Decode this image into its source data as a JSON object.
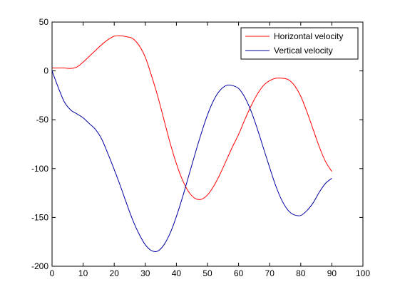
{
  "chart_data": {
    "type": "line",
    "title": "",
    "xlabel": "",
    "ylabel": "",
    "xlim": [
      0,
      100
    ],
    "ylim": [
      -200,
      50
    ],
    "xticks": [
      0,
      10,
      20,
      30,
      40,
      50,
      60,
      70,
      80,
      90,
      100
    ],
    "yticks": [
      -200,
      -150,
      -100,
      -50,
      0,
      50
    ],
    "grid": false,
    "legend_position": "top-right",
    "series": [
      {
        "name": "Horizontal velocity",
        "color": "#ff0000",
        "x": [
          0,
          2,
          4,
          6,
          8,
          10,
          12,
          14,
          16,
          18,
          20,
          22,
          24,
          26,
          28,
          30,
          32,
          34,
          36,
          38,
          40,
          42,
          44,
          46,
          48,
          50,
          52,
          54,
          56,
          58,
          60,
          62,
          64,
          66,
          68,
          70,
          72,
          74,
          76,
          78,
          80,
          82,
          84,
          86,
          88,
          90
        ],
        "y": [
          3,
          3,
          3,
          2.5,
          4,
          9,
          15,
          21,
          27,
          32,
          35.5,
          36,
          35,
          33,
          26,
          14,
          -5,
          -26,
          -50,
          -74,
          -95,
          -112,
          -124,
          -130.5,
          -131.5,
          -127,
          -118,
          -106,
          -92,
          -78,
          -65,
          -50,
          -36,
          -24,
          -15,
          -10,
          -7.5,
          -7.5,
          -9,
          -15,
          -26,
          -42,
          -60,
          -78,
          -93,
          -103
        ]
      },
      {
        "name": "Vertical velocity",
        "color": "#0000a0",
        "x": [
          0,
          2,
          4,
          6,
          8,
          10,
          12,
          14,
          16,
          18,
          20,
          22,
          24,
          26,
          28,
          30,
          32,
          34,
          36,
          38,
          40,
          42,
          44,
          46,
          48,
          50,
          52,
          54,
          56,
          58,
          60,
          62,
          64,
          66,
          68,
          70,
          72,
          74,
          76,
          78,
          80,
          82,
          84,
          86,
          88,
          90
        ],
        "y": [
          0,
          -17,
          -32,
          -40,
          -44,
          -48,
          -54,
          -60,
          -70,
          -85,
          -101,
          -118,
          -136,
          -153,
          -167,
          -178,
          -184,
          -184.5,
          -178,
          -166,
          -149,
          -129,
          -107,
          -85,
          -64,
          -45,
          -30,
          -20,
          -15,
          -15,
          -18,
          -27,
          -41,
          -59,
          -79,
          -99,
          -118,
          -133,
          -143,
          -147.5,
          -148,
          -143,
          -135,
          -124,
          -115,
          -110
        ]
      }
    ]
  }
}
